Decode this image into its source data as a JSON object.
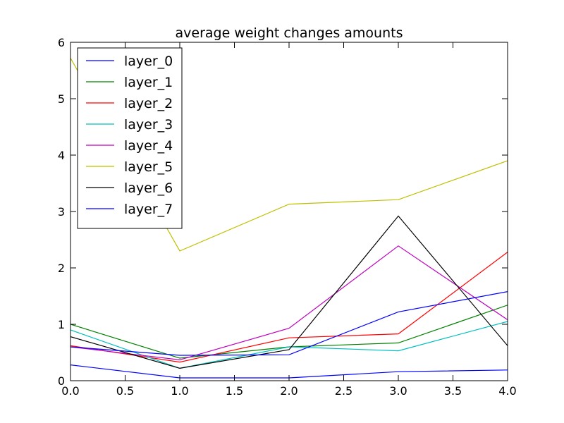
{
  "chart_data": {
    "type": "line",
    "title": "average weight changes amounts",
    "xlabel": "",
    "ylabel": "",
    "x": [
      0,
      1,
      2,
      3,
      4
    ],
    "xlim": [
      0,
      4
    ],
    "ylim": [
      0,
      6
    ],
    "xticks": [
      "0.0",
      "0.5",
      "1.0",
      "1.5",
      "2.0",
      "2.5",
      "3.0",
      "3.5",
      "4.0"
    ],
    "yticks": [
      "0",
      "1",
      "2",
      "3",
      "4",
      "5",
      "6"
    ],
    "grid": false,
    "legend_position": "top-left",
    "series": [
      {
        "name": "layer_0",
        "color": "#0000ff",
        "values": [
          0.28,
          0.05,
          0.05,
          0.16,
          0.19
        ]
      },
      {
        "name": "layer_1",
        "color": "#008000",
        "values": [
          1.0,
          0.4,
          0.6,
          0.67,
          1.34
        ]
      },
      {
        "name": "layer_2",
        "color": "#ff0000",
        "values": [
          0.62,
          0.33,
          0.76,
          0.83,
          2.28
        ]
      },
      {
        "name": "layer_3",
        "color": "#00bfbf",
        "values": [
          0.9,
          0.22,
          0.6,
          0.53,
          1.05
        ]
      },
      {
        "name": "layer_4",
        "color": "#bf00bf",
        "values": [
          0.6,
          0.37,
          0.93,
          2.39,
          1.08
        ]
      },
      {
        "name": "layer_5",
        "color": "#bfbf00",
        "values": [
          5.72,
          2.3,
          3.13,
          3.21,
          3.9
        ]
      },
      {
        "name": "layer_6",
        "color": "#000000",
        "values": [
          0.78,
          0.22,
          0.55,
          2.92,
          0.62
        ]
      },
      {
        "name": "layer_7",
        "color": "#0000ff",
        "values": [
          0.6,
          0.45,
          0.46,
          1.22,
          1.58
        ]
      }
    ]
  }
}
